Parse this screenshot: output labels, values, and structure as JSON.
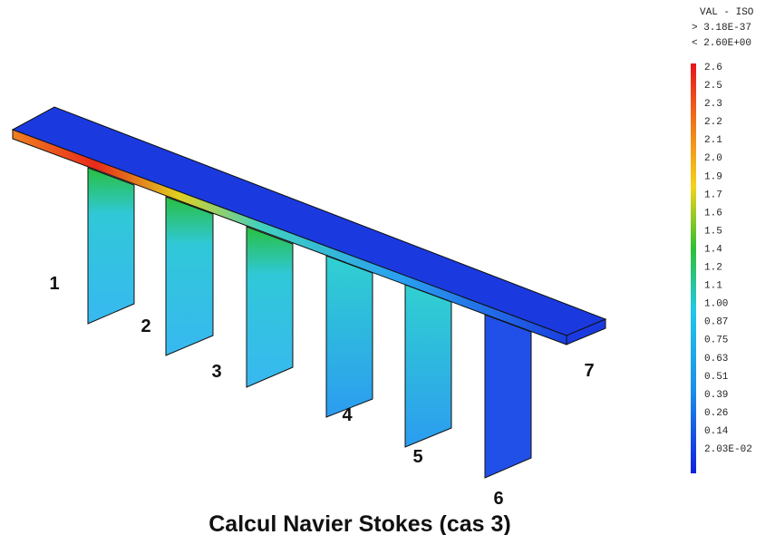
{
  "title": "Calcul Navier Stokes (cas 3)",
  "legend": {
    "header": "VAL - ISO",
    "max": "> 3.18E-37",
    "min": "< 2.60E+00",
    "levels": [
      "2.6",
      "2.5",
      "2.3",
      "2.2",
      "2.1",
      "2.0",
      "1.9",
      "1.7",
      "1.6",
      "1.5",
      "1.4",
      "1.2",
      "1.1",
      "1.00",
      "0.87",
      "0.75",
      "0.63",
      "0.51",
      "0.39",
      "0.26",
      "0.14",
      "2.03E-02"
    ]
  },
  "outlet_labels": [
    "1",
    "2",
    "3",
    "4",
    "5",
    "6",
    "7"
  ]
}
